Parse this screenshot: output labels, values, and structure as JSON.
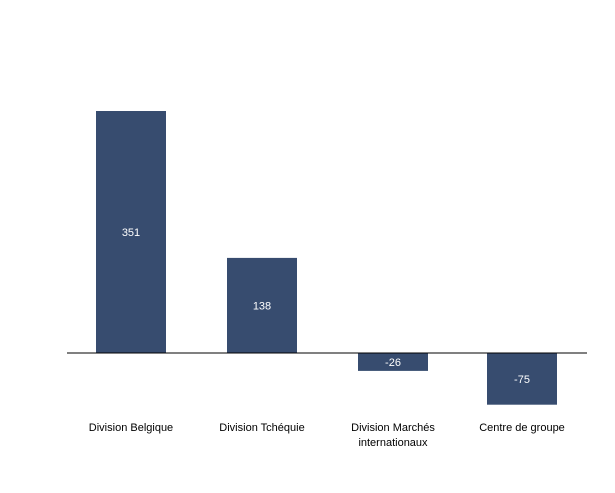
{
  "chart_data": {
    "type": "bar",
    "categories": [
      [
        "Division Belgique"
      ],
      [
        "Division Tchéquie"
      ],
      [
        "Division Marchés",
        "internationaux"
      ],
      [
        "Centre de groupe"
      ]
    ],
    "values": [
      351,
      138,
      -26,
      -75
    ],
    "data_labels": [
      "351",
      "138",
      "-26",
      "-75"
    ],
    "bar_color": "#374c6f",
    "axis_color": "#000000",
    "label_color": "#ffffff",
    "grid": false,
    "legend": "none"
  }
}
